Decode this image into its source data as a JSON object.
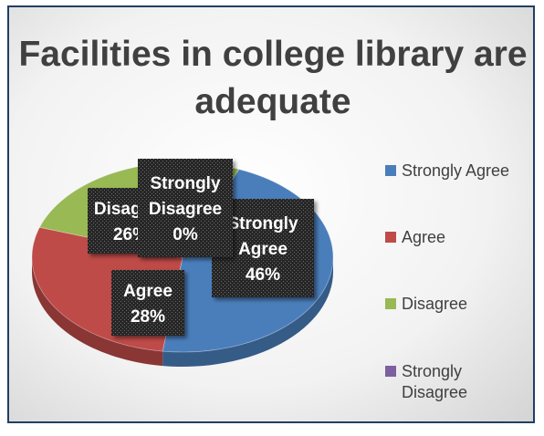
{
  "chart_data": {
    "type": "pie",
    "title": "Facilities in college library are adequate",
    "categories": [
      "Strongly Agree",
      "Agree",
      "Disagree",
      "Strongly Disagree"
    ],
    "values": [
      46,
      28,
      26,
      0
    ],
    "value_labels": [
      "46%",
      "28%",
      "26%",
      "0%"
    ],
    "label_names": [
      "Strongly Agree",
      "Agree",
      "Disagree",
      "Strongly Disagree"
    ],
    "colors": [
      "#4a7ebb",
      "#be4b48",
      "#98b954",
      "#7d60a0"
    ],
    "legend_position": "right",
    "style": "3d-perspective",
    "legend": [
      "Strongly Agree",
      "Agree",
      "Disagree",
      "Strongly Disagree"
    ]
  }
}
